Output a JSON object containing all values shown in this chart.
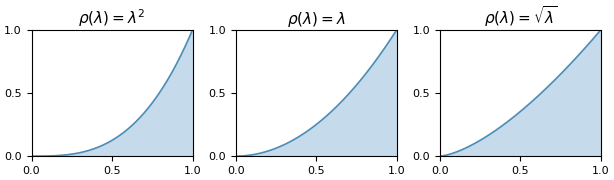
{
  "title1": "$\\rho(\\lambda) = \\lambda^2$",
  "title2": "$\\rho(\\lambda) = \\lambda$",
  "title3": "$\\rho(\\lambda) = \\sqrt{\\lambda}$",
  "xlim": [
    0.0,
    1.0
  ],
  "ylim": [
    0.0,
    1.0
  ],
  "line_color": "#4b8db8",
  "fill_color": "#c5daea",
  "fill_alpha": 1.0,
  "line_width": 1.2,
  "xticks": [
    0.0,
    0.5,
    1.0
  ],
  "yticks": [
    0.0,
    0.5,
    1.0
  ],
  "tick_labelsize": 8,
  "title_fontsize": 11,
  "figsize": [
    6.14,
    1.8
  ],
  "dpi": 100,
  "exponents": [
    3.0,
    2.0,
    1.5
  ]
}
